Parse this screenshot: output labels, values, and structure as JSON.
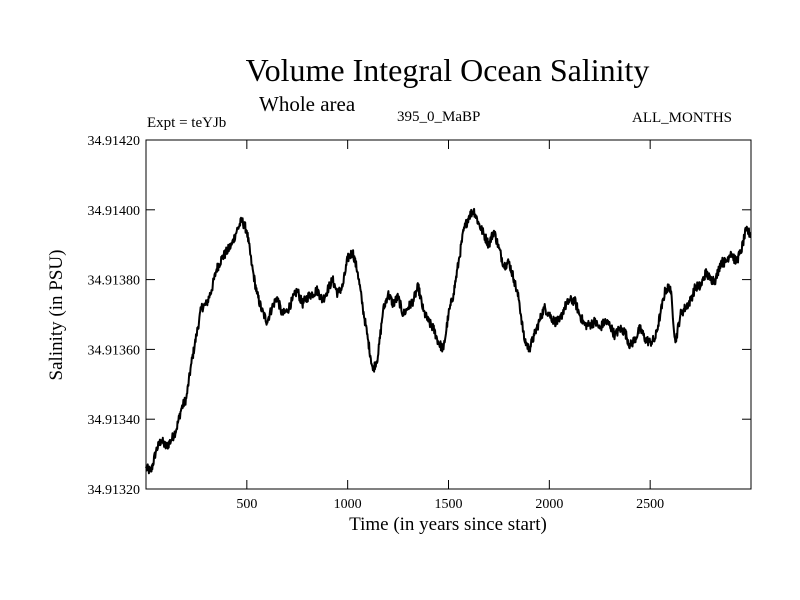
{
  "chart_data": {
    "type": "line",
    "title": "Volume Integral Ocean Salinity",
    "subtitle": "Whole area",
    "annotations": {
      "left": "Expt = teYJb",
      "center": "395_0_MaBP",
      "right": "ALL_MONTHS"
    },
    "xlabel": "Time (in years since start)",
    "ylabel": "Salinity (in PSU)",
    "xlim": [
      0,
      3000
    ],
    "ylim": [
      34.9132,
      34.9142
    ],
    "xticks": [
      500,
      1000,
      1500,
      2000,
      2500
    ],
    "xtick_labels": [
      "500",
      "1000",
      "1500",
      "2000",
      "2500"
    ],
    "yticks": [
      34.9132,
      34.9134,
      34.9136,
      34.9138,
      34.914,
      34.9142
    ],
    "ytick_labels": [
      "34.91320",
      "34.91340",
      "34.91360",
      "34.91380",
      "34.91400",
      "34.91420"
    ],
    "grid": false,
    "series": [
      {
        "name": "Salinity",
        "color": "#000000",
        "x": [
          0,
          25,
          50,
          75,
          100,
          125,
          150,
          175,
          200,
          225,
          250,
          275,
          300,
          325,
          350,
          375,
          400,
          425,
          450,
          475,
          500,
          525,
          550,
          575,
          600,
          625,
          650,
          675,
          700,
          725,
          750,
          775,
          800,
          825,
          850,
          875,
          900,
          925,
          950,
          975,
          1000,
          1025,
          1050,
          1075,
          1100,
          1125,
          1150,
          1175,
          1200,
          1225,
          1250,
          1275,
          1300,
          1325,
          1350,
          1375,
          1400,
          1425,
          1450,
          1475,
          1500,
          1525,
          1550,
          1575,
          1600,
          1625,
          1650,
          1675,
          1700,
          1725,
          1750,
          1775,
          1800,
          1825,
          1850,
          1875,
          1900,
          1925,
          1950,
          1975,
          2000,
          2025,
          2050,
          2075,
          2100,
          2125,
          2150,
          2175,
          2200,
          2225,
          2250,
          2275,
          2300,
          2325,
          2350,
          2375,
          2400,
          2425,
          2450,
          2475,
          2500,
          2525,
          2550,
          2575,
          2600,
          2625,
          2650,
          2675,
          2700,
          2725,
          2750,
          2775,
          2800,
          2825,
          2850,
          2875,
          2900,
          2925,
          2950,
          2975,
          3000
        ],
        "values": [
          34.91326,
          34.91325,
          34.91331,
          34.91334,
          34.91332,
          34.91334,
          34.91337,
          34.91343,
          34.91346,
          34.91356,
          34.91364,
          34.91372,
          34.91373,
          34.91377,
          34.91383,
          34.91386,
          34.91388,
          34.9139,
          34.91394,
          34.91397,
          34.91394,
          34.91384,
          34.91376,
          34.91371,
          34.91368,
          34.91372,
          34.91375,
          34.9137,
          34.91371,
          34.91374,
          34.91377,
          34.91373,
          34.91375,
          34.91376,
          34.91377,
          34.91374,
          34.91377,
          34.9138,
          34.91376,
          34.91378,
          34.91386,
          34.91388,
          34.91382,
          34.91372,
          34.91363,
          34.91354,
          34.91358,
          34.91371,
          34.91376,
          34.91373,
          34.91375,
          34.9137,
          34.91372,
          34.91374,
          34.91378,
          34.91371,
          34.91368,
          34.91366,
          34.91362,
          34.9136,
          34.9137,
          34.91376,
          34.91385,
          34.91394,
          34.91398,
          34.914,
          34.91396,
          34.91393,
          34.9139,
          34.91394,
          34.91389,
          34.91384,
          34.91385,
          34.9138,
          34.91374,
          34.91363,
          34.9136,
          34.91364,
          34.91368,
          34.91372,
          34.9137,
          34.91368,
          34.91368,
          34.91372,
          34.91374,
          34.91374,
          34.9137,
          34.91367,
          34.91367,
          34.91368,
          34.91366,
          34.91368,
          34.91367,
          34.91364,
          34.91366,
          34.91365,
          34.91361,
          34.91363,
          34.91366,
          34.91363,
          34.91362,
          34.91363,
          34.9137,
          34.91377,
          34.91378,
          34.91362,
          34.9137,
          34.91372,
          34.91374,
          34.91378,
          34.91378,
          34.91382,
          34.9138,
          34.9138,
          34.91385,
          34.91385,
          34.91388,
          34.91385,
          34.91388,
          34.91394,
          34.91393
        ]
      }
    ]
  }
}
